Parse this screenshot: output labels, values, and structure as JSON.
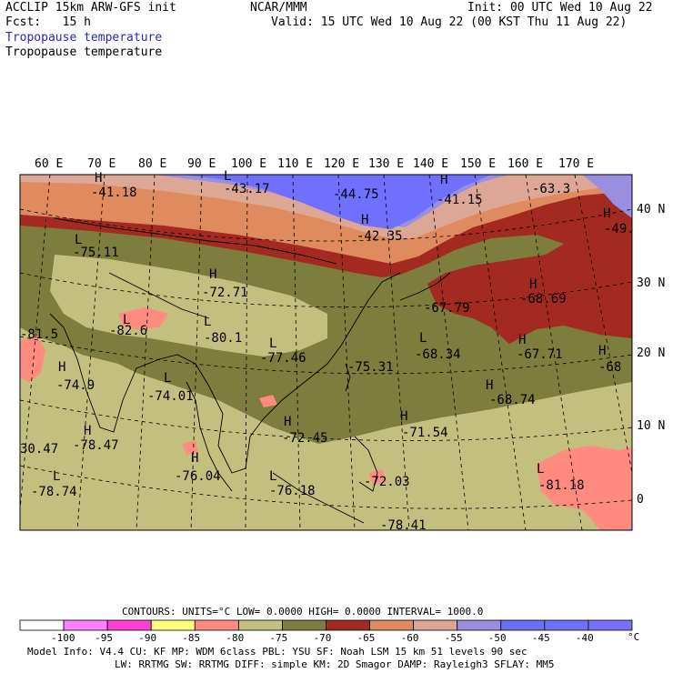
{
  "header": {
    "model": "ACCLIP 15km ARW-GFS init",
    "forecast": "Fcst:   15 h",
    "center": "NCAR/MMM",
    "init": "Init: 00 UTC Wed 10 Aug 22",
    "valid": "Valid: 15 UTC Wed 10 Aug 22 (00 KST Thu 11 Aug 22)",
    "field_colored": "Tropopause temperature",
    "field_plain": "Tropopause temperature"
  },
  "axes": {
    "lon_labels": [
      "60 E",
      "70 E",
      "80 E",
      "90 E",
      "100 E",
      "110 E",
      "120 E",
      "130 E",
      "140 E",
      "150 E",
      "160 E",
      "170 E"
    ],
    "lat_labels": [
      "40 N",
      "30 N",
      "20 N",
      "10 N",
      "0"
    ]
  },
  "extremes": [
    {
      "kind": "H",
      "value": "-41.18"
    },
    {
      "kind": "L",
      "value": "-43.17"
    },
    {
      "kind": "",
      "value": "-44.75"
    },
    {
      "kind": "H",
      "value": "-41.15"
    },
    {
      "kind": "",
      "value": "-63.3"
    },
    {
      "kind": "H",
      "value": "-49."
    },
    {
      "kind": "H",
      "value": "-42.35"
    },
    {
      "kind": "L",
      "value": "-75.11"
    },
    {
      "kind": "H",
      "value": "-72.71"
    },
    {
      "kind": "H",
      "value": "-68.69"
    },
    {
      "kind": "",
      "value": "-67.79"
    },
    {
      "kind": "L",
      "value": "-82.6"
    },
    {
      "kind": "",
      "value": "-81.5"
    },
    {
      "kind": "L",
      "value": "-80.1"
    },
    {
      "kind": "L",
      "value": "-77.46"
    },
    {
      "kind": "",
      "value": "-75.31"
    },
    {
      "kind": "L",
      "value": "-68.34"
    },
    {
      "kind": "H",
      "value": "-67.71"
    },
    {
      "kind": "H",
      "value": "-68"
    },
    {
      "kind": "H",
      "value": "-74.9"
    },
    {
      "kind": "L",
      "value": "-74.01"
    },
    {
      "kind": "H",
      "value": "-68.74"
    },
    {
      "kind": "H",
      "value": "-72.45"
    },
    {
      "kind": "H",
      "value": "-71.54"
    },
    {
      "kind": "",
      "value": "30.47"
    },
    {
      "kind": "H",
      "value": "-78.47"
    },
    {
      "kind": "H",
      "value": "-76.04"
    },
    {
      "kind": "L",
      "value": "-78.74"
    },
    {
      "kind": "L",
      "value": "-76.18"
    },
    {
      "kind": "",
      "value": "-72.03"
    },
    {
      "kind": "L",
      "value": "-81.18"
    },
    {
      "kind": "",
      "value": "-78.41"
    }
  ],
  "footer": {
    "contours_line": "CONTOURS:  UNITS=°C  LOW=  0.0000      HIGH=  0.0000      INTERVAL=   1000.0",
    "unit": "°C",
    "colorbar": {
      "colors": [
        "#ffffff",
        "#ff80ff",
        "#ff40d8",
        "#ffff80",
        "#ff8a80",
        "#c3c07f",
        "#7d7d3e",
        "#a22a20",
        "#e08a60",
        "#dca895",
        "#9a8ee0",
        "#6b70f0",
        "#7070ff",
        "#7a70ff"
      ],
      "tick_labels": [
        "-100",
        "-95",
        "-90",
        "-85",
        "-80",
        "-75",
        "-70",
        "-65",
        "-60",
        "-55",
        "-50",
        "-45",
        "-40"
      ]
    },
    "info_line1": "Model Info: V4.4      CU: KF       MP: WDM 6class  PBL: YSU       SF: Noah LSM    15 km   51 levels   90 sec",
    "info_line2": "LW: RRTMG    SW: RRTMG  DIFF: simple KM: 2D Smagor DAMP: Rayleigh3  SFLAY: MM5"
  },
  "legend_colors": {
    "lt80": "#ff8a80",
    "lt75": "#c3c07f",
    "lt70": "#7d7d3e",
    "lt65": "#a22a20",
    "lt60": "#e08a60",
    "lt55": "#dca895",
    "lt50": "#9a8ee0",
    "lt45": "#7070ff"
  }
}
